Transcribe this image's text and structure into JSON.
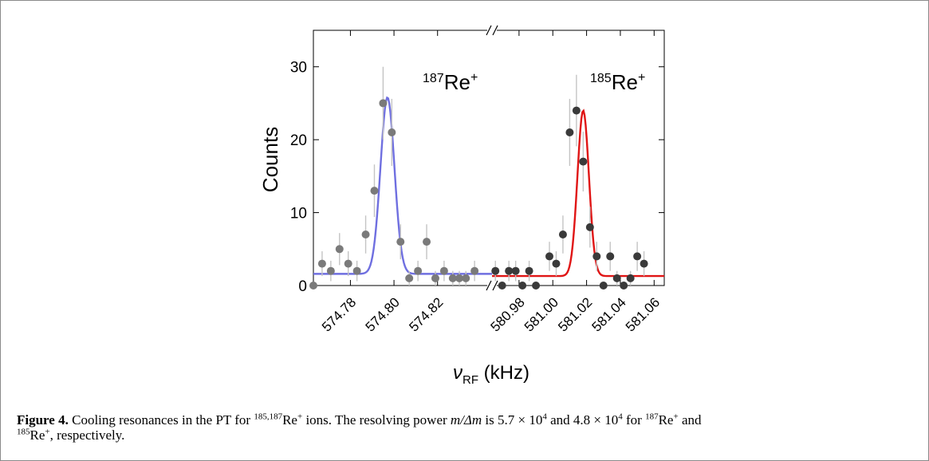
{
  "chart_data": {
    "type": "scatter",
    "ylabel": "Counts",
    "xlabel_symbol": "ν",
    "xlabel_subscript": "RF",
    "xlabel_unit": "(kHz)",
    "ylim": [
      0,
      35
    ],
    "yticks": [
      0,
      10,
      20,
      30
    ],
    "broken_axis": true,
    "panels": [
      {
        "xlim": [
          574.763,
          574.845
        ],
        "xticks": [
          "574.78",
          "574.80",
          "574.82"
        ],
        "tick_values": [
          574.78,
          574.8,
          574.82
        ],
        "label_mass": "187",
        "label_ion": "Re+",
        "marker_color": "#7a7a7a",
        "fit_color": "#6f6fe0",
        "fit": {
          "amplitude": 24.2,
          "center": 574.797,
          "sigma": 0.0032,
          "baseline": 1.6
        },
        "points": [
          {
            "x": 574.763,
            "y": 0,
            "err": 0
          },
          {
            "x": 574.767,
            "y": 3,
            "err": 1.7
          },
          {
            "x": 574.771,
            "y": 2,
            "err": 1.4
          },
          {
            "x": 574.775,
            "y": 5,
            "err": 2.2
          },
          {
            "x": 574.779,
            "y": 3,
            "err": 1.7
          },
          {
            "x": 574.783,
            "y": 2,
            "err": 1.4
          },
          {
            "x": 574.787,
            "y": 7,
            "err": 2.6
          },
          {
            "x": 574.791,
            "y": 13,
            "err": 3.6
          },
          {
            "x": 574.795,
            "y": 25,
            "err": 5.0
          },
          {
            "x": 574.799,
            "y": 21,
            "err": 4.6
          },
          {
            "x": 574.803,
            "y": 6,
            "err": 2.4
          },
          {
            "x": 574.807,
            "y": 1,
            "err": 1.0
          },
          {
            "x": 574.811,
            "y": 2,
            "err": 1.4
          },
          {
            "x": 574.815,
            "y": 6,
            "err": 2.4
          },
          {
            "x": 574.819,
            "y": 1,
            "err": 1.0
          },
          {
            "x": 574.823,
            "y": 2,
            "err": 1.4
          },
          {
            "x": 574.827,
            "y": 1,
            "err": 1.0
          },
          {
            "x": 574.83,
            "y": 1,
            "err": 1.0
          },
          {
            "x": 574.833,
            "y": 1,
            "err": 1.0
          },
          {
            "x": 574.837,
            "y": 2,
            "err": 1.4
          }
        ]
      },
      {
        "xlim": [
          580.964,
          581.066
        ],
        "xticks": [
          "580.98",
          "581.00",
          "581.02",
          "581.04",
          "581.06"
        ],
        "tick_values": [
          580.98,
          581.0,
          581.02,
          581.04,
          581.06
        ],
        "label_mass": "185",
        "label_ion": "Re+",
        "marker_color": "#3a3a3a",
        "fit_color": "#e01515",
        "fit": {
          "amplitude": 22.7,
          "center": 581.018,
          "sigma": 0.0034,
          "baseline": 1.3
        },
        "points": [
          {
            "x": 580.966,
            "y": 2,
            "err": 1.4
          },
          {
            "x": 580.97,
            "y": 0,
            "err": 0
          },
          {
            "x": 580.974,
            "y": 2,
            "err": 1.4
          },
          {
            "x": 580.978,
            "y": 2,
            "err": 1.4
          },
          {
            "x": 580.982,
            "y": 0,
            "err": 0
          },
          {
            "x": 580.986,
            "y": 2,
            "err": 1.4
          },
          {
            "x": 580.99,
            "y": 0,
            "err": 0
          },
          {
            "x": 580.998,
            "y": 4,
            "err": 2.0
          },
          {
            "x": 581.002,
            "y": 3,
            "err": 1.7
          },
          {
            "x": 581.006,
            "y": 7,
            "err": 2.6
          },
          {
            "x": 581.01,
            "y": 21,
            "err": 4.6
          },
          {
            "x": 581.014,
            "y": 24,
            "err": 4.9
          },
          {
            "x": 581.018,
            "y": 17,
            "err": 4.1
          },
          {
            "x": 581.022,
            "y": 8,
            "err": 2.8
          },
          {
            "x": 581.026,
            "y": 4,
            "err": 2.0
          },
          {
            "x": 581.03,
            "y": 0,
            "err": 0
          },
          {
            "x": 581.034,
            "y": 4,
            "err": 2.0
          },
          {
            "x": 581.038,
            "y": 1,
            "err": 1.0
          },
          {
            "x": 581.042,
            "y": 0,
            "err": 0
          },
          {
            "x": 581.046,
            "y": 1,
            "err": 1.0
          },
          {
            "x": 581.05,
            "y": 4,
            "err": 2.0
          },
          {
            "x": 581.054,
            "y": 3,
            "err": 1.7
          }
        ]
      }
    ]
  },
  "caption": {
    "label": "Figure 4.",
    "text1": " Cooling resonances in the PT for ",
    "sup1": "185,187",
    "text2": "Re",
    "sup2": "+",
    "text3": " ions. The resolving power ",
    "formula": "m/Δm",
    "text4": " is 5.7 × 10",
    "sup3": "4",
    "text5": " and 4.8 × 10",
    "sup4": "4",
    "text6": " for ",
    "sup5": "187",
    "text7": "Re",
    "sup6": "+",
    "text8": " and",
    "sup7": "185",
    "text9": "Re",
    "sup8": "+",
    "text10": ", respectively."
  }
}
